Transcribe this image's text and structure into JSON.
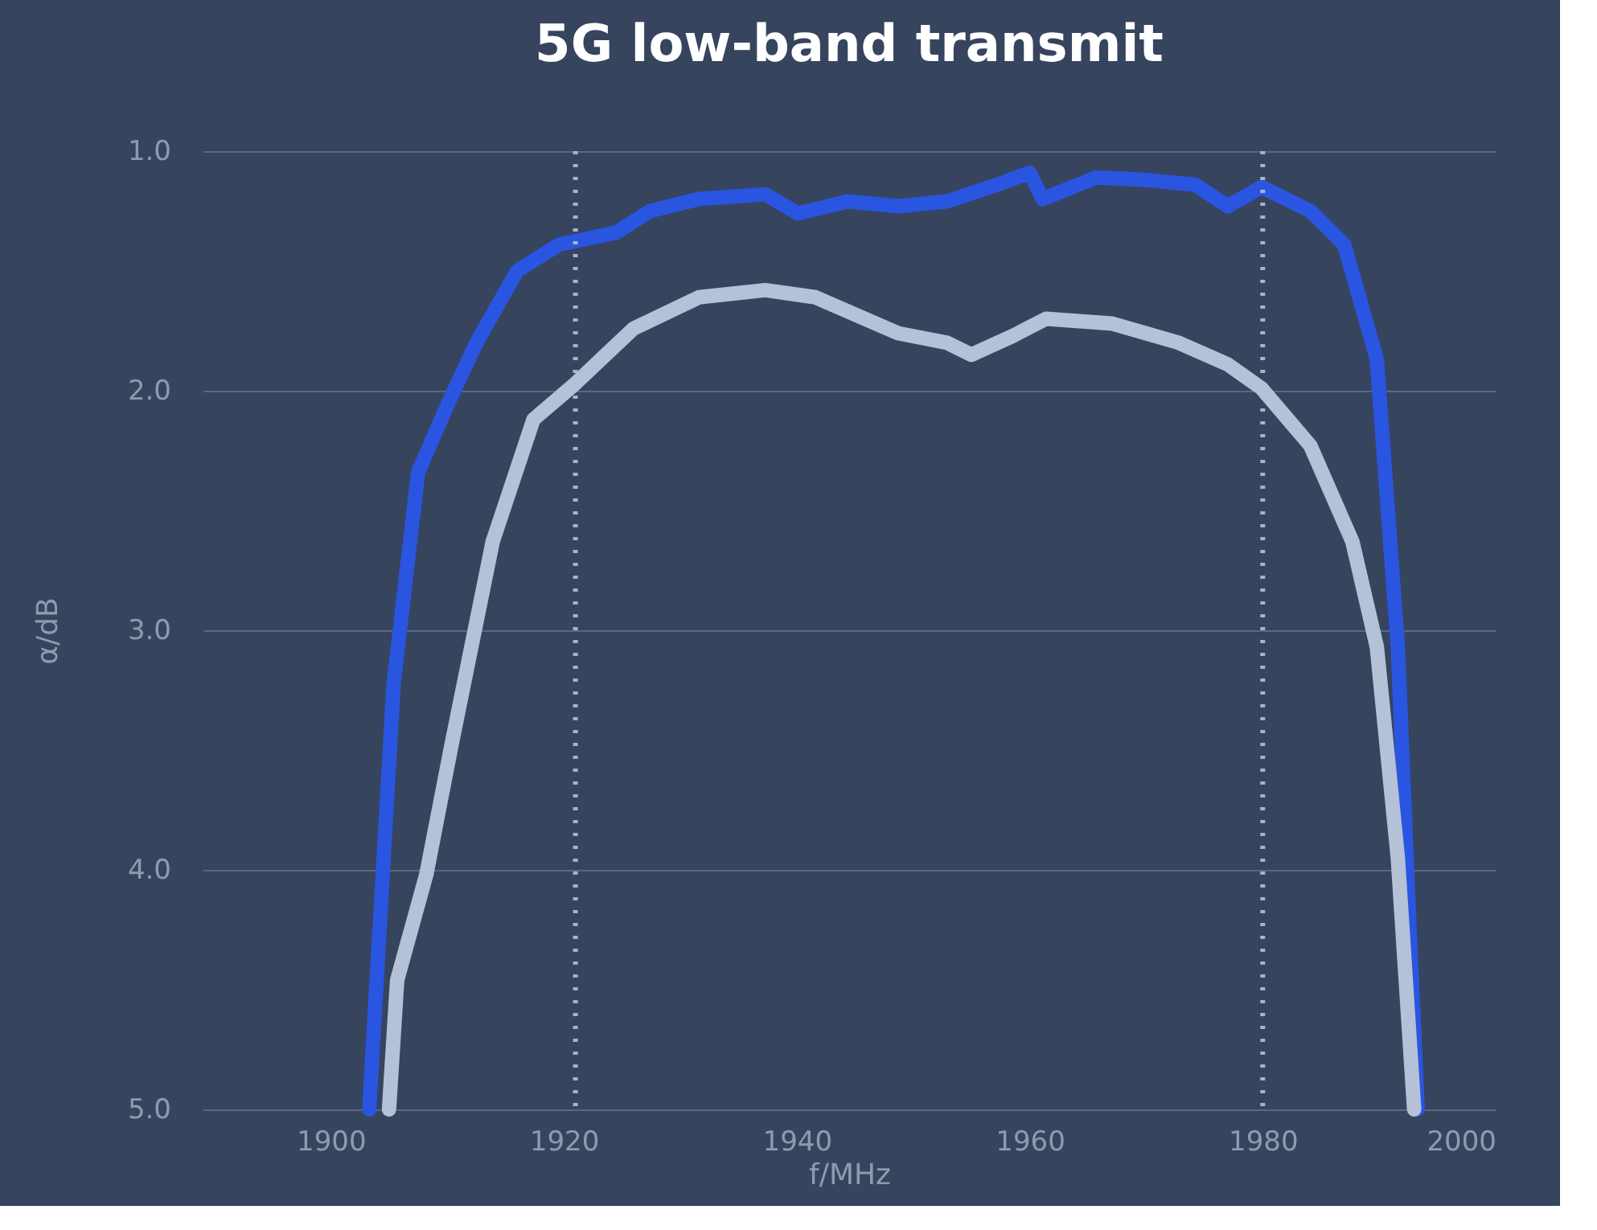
{
  "chart_data": {
    "type": "line",
    "title": "5G low-band transmit",
    "xlabel": "f/MHz",
    "ylabel": "α/dB",
    "xlim": [
      1889,
      2000
    ],
    "xticks": [
      1900,
      1920,
      1940,
      1960,
      1980,
      2000
    ],
    "ylim": [
      5.0,
      1.0
    ],
    "yticks": [
      {
        "value": 1,
        "label": "1.0"
      },
      {
        "value": 2,
        "label": "2.0"
      },
      {
        "value": 3,
        "label": "3.0"
      },
      {
        "value": 4,
        "label": "4.0"
      },
      {
        "value": 5,
        "label": "5.0"
      }
    ],
    "grid": "y",
    "marker": "none",
    "line_style": "solid",
    "series": [
      {
        "color": "#2a55e0",
        "x": [
          1903.3,
          1905.4,
          1907.5,
          1910.1,
          1912.5,
          1916,
          1919.6,
          1924.5,
          1927.4,
          1931.6,
          1937.3,
          1940.1,
          1944.4,
          1948.7,
          1952.9,
          1957.2,
          1960,
          1961.1,
          1965.7,
          1969.9,
          1974.2,
          1977,
          1979.9,
          1984.1,
          1987,
          1989.8,
          1991.6,
          1992.6,
          1993.3
        ],
        "values": [
          5.0,
          3.22,
          2.34,
          2.05,
          1.8,
          1.5,
          1.39,
          1.34,
          1.25,
          1.2,
          1.18,
          1.26,
          1.21,
          1.23,
          1.21,
          1.14,
          1.09,
          1.2,
          1.11,
          1.12,
          1.14,
          1.23,
          1.15,
          1.25,
          1.39,
          1.87,
          3.07,
          4.24,
          5.0
        ]
      },
      {
        "color": "#b4c1d6",
        "x": [
          1905,
          1905.7,
          1908.2,
          1910.4,
          1913.9,
          1917.4,
          1921,
          1926,
          1931.6,
          1937.3,
          1941.6,
          1948.7,
          1952.9,
          1955,
          1958.6,
          1961.4,
          1967.1,
          1972.8,
          1977,
          1979.9,
          1984.1,
          1987.7,
          1989.8,
          1991.6,
          1993
        ],
        "values": [
          5.0,
          4.46,
          4.02,
          3.47,
          2.63,
          2.12,
          1.97,
          1.74,
          1.61,
          1.58,
          1.61,
          1.76,
          1.8,
          1.85,
          1.77,
          1.7,
          1.72,
          1.8,
          1.89,
          1.99,
          2.23,
          2.63,
          3.07,
          3.95,
          5.0
        ]
      }
    ],
    "ref_lines": [
      {
        "axis": "x",
        "value": 1921,
        "color": "#aab4c8",
        "line_style": "dotted"
      },
      {
        "axis": "x",
        "value": 1980,
        "color": "#aab4c8",
        "line_style": "dotted"
      }
    ]
  }
}
